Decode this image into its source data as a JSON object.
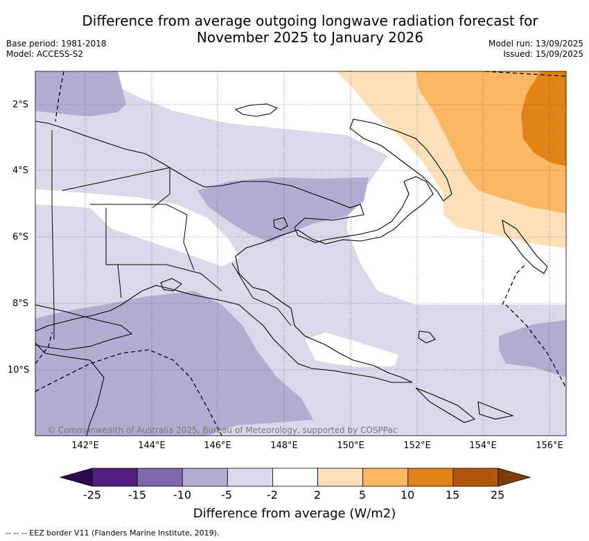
{
  "title_line1": "Difference from average outgoing longwave radiation forecast for",
  "title_line2": "November 2025 to January 2026",
  "base_period": "Base period: 1981-2018",
  "model": "Model: ACCESS-S2",
  "model_run": "Model run: 13/09/2025",
  "issued": "Issued: 15/09/2025",
  "lat_labels": [
    "2°S",
    "4°S",
    "6°S",
    "8°S",
    "10°S"
  ],
  "lon_labels": [
    "142°E",
    "144°E",
    "146°E",
    "148°E",
    "150°E",
    "152°E",
    "154°E",
    "156°E"
  ],
  "copyright": "© Commonwealth of Australia 2025, Bureau of Meteorology, supported by COSPPac",
  "colorbar": {
    "ticks": [
      "-25",
      "-15",
      "-10",
      "-5",
      "-2",
      "2",
      "5",
      "10",
      "15",
      "25"
    ],
    "colors": [
      "#531d80",
      "#7d6aaa",
      "#b2acd3",
      "#d9d9ea",
      "#ffffff",
      "#fde0b8",
      "#fbb762",
      "#e28317",
      "#b05709"
    ],
    "under_color": "#2d0a4f",
    "over_color": "#7e3d0b",
    "label": "Difference from average (W/m2)"
  },
  "footnote": "--  --  -- EEZ border V11 (Flanders Marine Institute, 2019)."
}
